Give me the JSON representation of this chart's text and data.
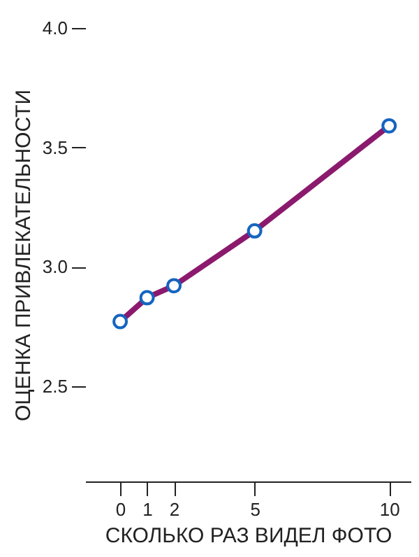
{
  "chart_data": {
    "type": "line",
    "xlabel": "СКОЛЬКО РАЗ ВИДЕЛ ФОТО",
    "ylabel": "ОЦЕНКА ПРИВЛЕКАТЕЛЬНОСТИ",
    "x": [
      0,
      1,
      2,
      5,
      10
    ],
    "series": [
      {
        "color": "#8b1a6e",
        "values": [
          2.77,
          2.87,
          2.92,
          3.15,
          3.59
        ]
      }
    ],
    "xlim": [
      -1.3,
      10.8
    ],
    "xticks": [
      0,
      1,
      2,
      5,
      10
    ],
    "ylim": [
      2.1,
      4.0
    ],
    "yticks": [
      2.5,
      {
        "value": 3,
        "label": "3.0"
      },
      3.5,
      {
        "value": 4,
        "label": "4.0"
      }
    ],
    "grid": false,
    "marker": "circle",
    "line_style": "solid"
  }
}
